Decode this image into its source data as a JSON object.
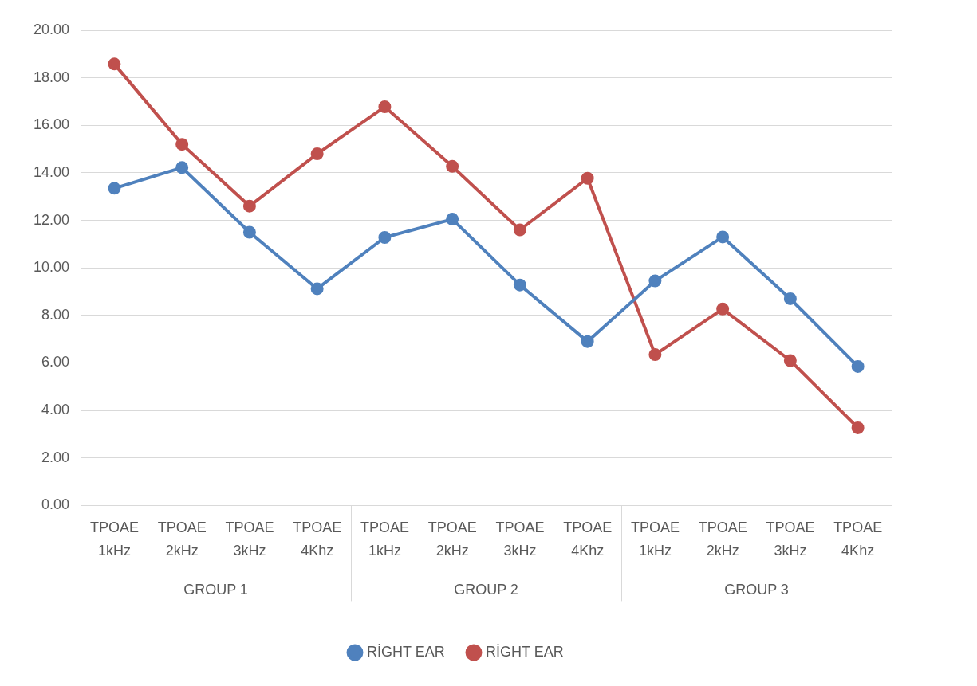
{
  "chart_data": {
    "type": "line",
    "categories": [
      "TPOAE 1kHz",
      "TPOAE 2kHz",
      "TPOAE 3kHz",
      "TPOAE 4Khz",
      "TPOAE 1kHz",
      "TPOAE 2kHz",
      "TPOAE 3kHz",
      "TPOAE 4Khz",
      "TPOAE 1kHz",
      "TPOAE 2kHz",
      "TPOAE 3kHz",
      "TPOAE 4Khz"
    ],
    "series": [
      {
        "name": "RİGHT EAR",
        "color": "#4f81bd",
        "values": [
          13.35,
          14.22,
          11.5,
          9.12,
          11.28,
          12.05,
          9.28,
          6.9,
          9.45,
          11.3,
          8.7,
          5.85
        ]
      },
      {
        "name": "RİGHT EAR",
        "color": "#c0504d",
        "values": [
          18.58,
          15.2,
          12.6,
          14.8,
          16.78,
          14.27,
          11.6,
          13.77,
          6.35,
          8.27,
          6.1,
          3.27
        ]
      }
    ],
    "annotations": [
      "GROUP 1",
      "GROUP 2",
      "GROUP 3"
    ],
    "ylim": [
      0,
      20
    ],
    "yticks": [
      {
        "value": 0,
        "label": "0.00"
      },
      {
        "value": 2,
        "label": "2.00"
      },
      {
        "value": 4,
        "label": "4.00"
      },
      {
        "value": 6,
        "label": "6.00"
      },
      {
        "value": 8,
        "label": "8.00"
      },
      {
        "value": 10,
        "label": "10.00"
      },
      {
        "value": 12,
        "label": "12.00"
      },
      {
        "value": 14,
        "label": "14.00"
      },
      {
        "value": 16,
        "label": "16.00"
      },
      {
        "value": 18,
        "label": "18.00"
      },
      {
        "value": 20,
        "label": "20.00"
      }
    ],
    "grid": "y",
    "legend": "bottom",
    "marker": "circle",
    "line_style": "solid"
  }
}
